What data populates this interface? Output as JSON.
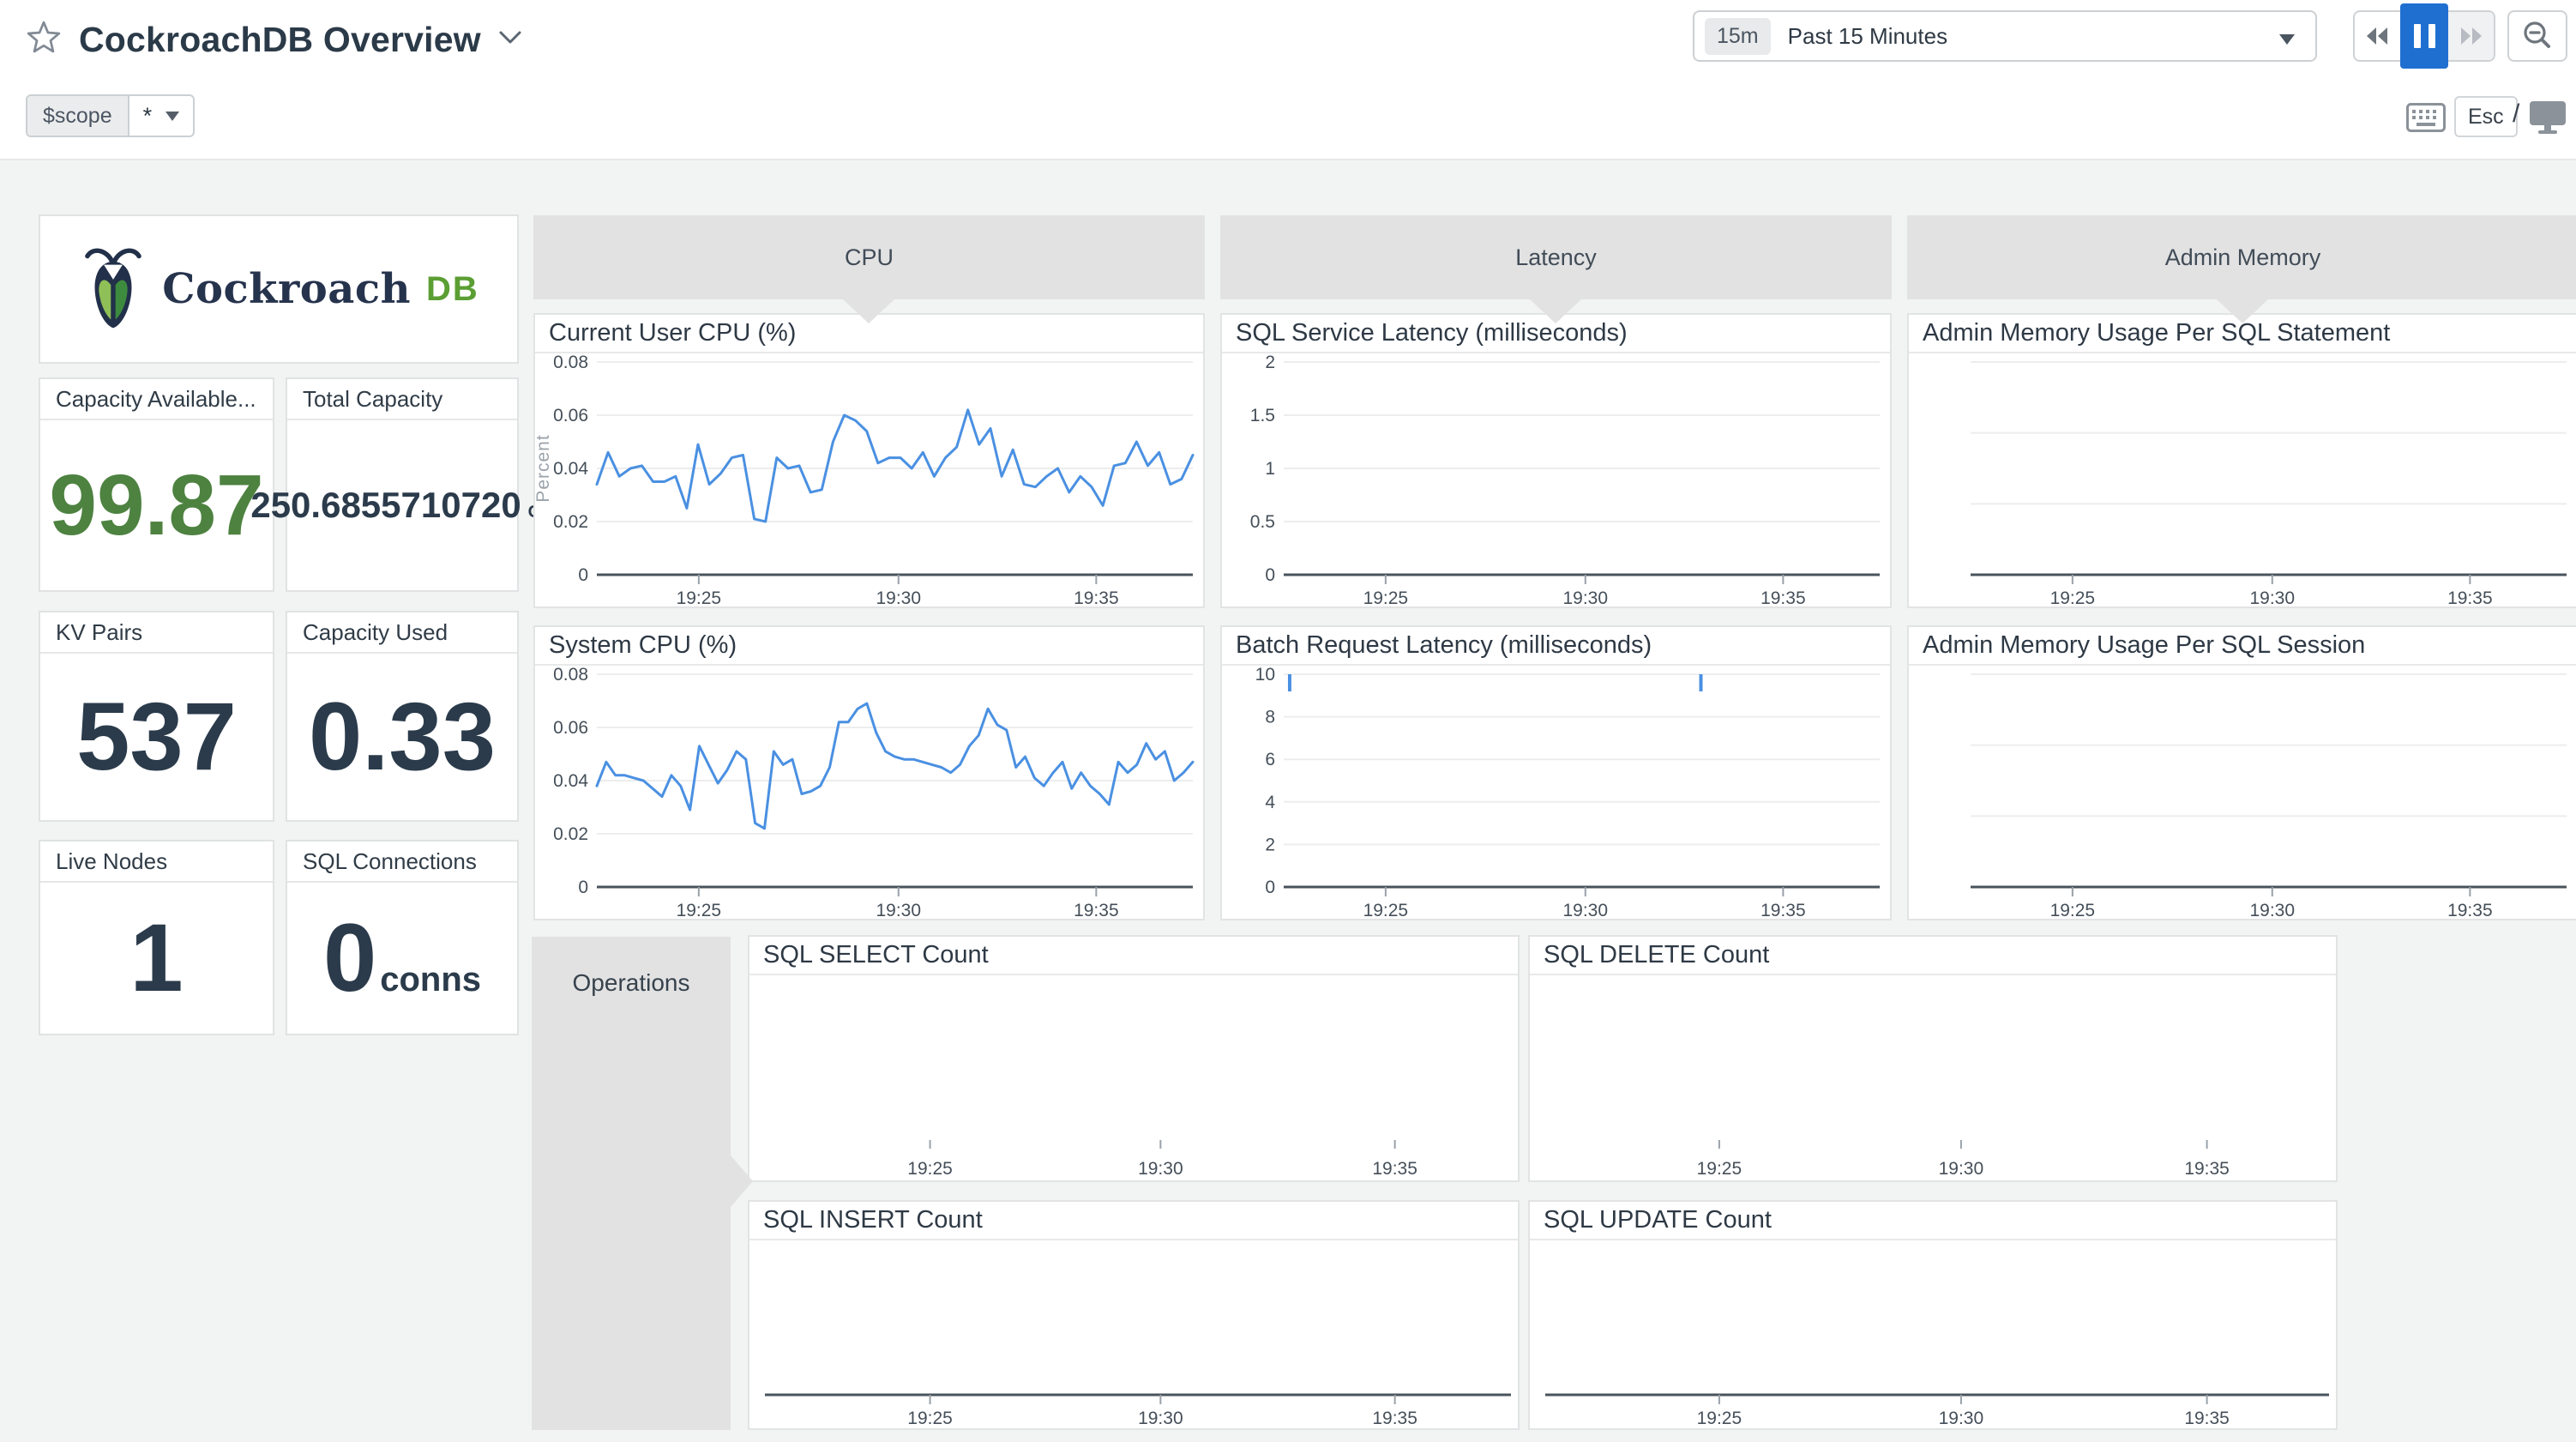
{
  "header": {
    "title": "CockroachDB Overview",
    "time_range": {
      "badge": "15m",
      "label": "Past 15 Minutes"
    },
    "shortcuts": {
      "esc": "Esc",
      "slash": "/"
    }
  },
  "scope_var": {
    "label": "$scope",
    "value": "*"
  },
  "logo": {
    "brand": "Cockroach",
    "suffix": "DB"
  },
  "stat_cards": [
    {
      "title": "Capacity Available...",
      "value": "99.87",
      "unit": ""
    },
    {
      "title": "Total Capacity",
      "value": "250.6855710720",
      "unit": "GB"
    },
    {
      "title": "KV Pairs",
      "value": "537",
      "unit": ""
    },
    {
      "title": "Capacity Used",
      "value": "0.33",
      "unit": ""
    },
    {
      "title": "Live Nodes",
      "value": "1",
      "unit": ""
    },
    {
      "title": "SQL Connections",
      "value": "0",
      "unit": "conns"
    }
  ],
  "groups": [
    {
      "name": "CPU"
    },
    {
      "name": "Latency"
    },
    {
      "name": "Admin Memory"
    },
    {
      "name": "Operations"
    }
  ],
  "chart_data": [
    {
      "type": "line",
      "title": "Current User CPU (%)",
      "ylabel": "Percent",
      "y_ticks": [
        "0.08",
        "0.06",
        "0.04",
        "0.02",
        "0"
      ],
      "ylim": [
        0,
        0.08
      ],
      "x_ticks": [
        "19:25",
        "19:30",
        "19:35"
      ],
      "baseline": true,
      "line_color": "#4a90e2",
      "values": [
        0.034,
        0.046,
        0.037,
        0.04,
        0.041,
        0.035,
        0.035,
        0.037,
        0.025,
        0.049,
        0.034,
        0.038,
        0.044,
        0.045,
        0.021,
        0.02,
        0.044,
        0.04,
        0.041,
        0.031,
        0.032,
        0.05,
        0.06,
        0.058,
        0.054,
        0.042,
        0.044,
        0.044,
        0.04,
        0.046,
        0.037,
        0.044,
        0.048,
        0.062,
        0.049,
        0.055,
        0.037,
        0.047,
        0.034,
        0.033,
        0.037,
        0.04,
        0.031,
        0.037,
        0.033,
        0.026,
        0.041,
        0.042,
        0.05,
        0.041,
        0.046,
        0.034,
        0.036,
        0.045
      ]
    },
    {
      "type": "line",
      "title": "System CPU (%)",
      "ylabel": "",
      "y_ticks": [
        "0.08",
        "0.06",
        "0.04",
        "0.02",
        "0"
      ],
      "ylim": [
        0,
        0.08
      ],
      "x_ticks": [
        "19:25",
        "19:30",
        "19:35"
      ],
      "baseline": true,
      "line_color": "#4a90e2",
      "values": [
        0.038,
        0.047,
        0.042,
        0.042,
        0.041,
        0.04,
        0.037,
        0.034,
        0.042,
        0.038,
        0.029,
        0.053,
        0.046,
        0.039,
        0.044,
        0.051,
        0.048,
        0.024,
        0.022,
        0.051,
        0.046,
        0.048,
        0.035,
        0.036,
        0.038,
        0.045,
        0.062,
        0.062,
        0.067,
        0.069,
        0.058,
        0.051,
        0.049,
        0.048,
        0.048,
        0.047,
        0.046,
        0.045,
        0.043,
        0.046,
        0.053,
        0.057,
        0.067,
        0.061,
        0.059,
        0.045,
        0.049,
        0.041,
        0.038,
        0.043,
        0.047,
        0.037,
        0.043,
        0.038,
        0.035,
        0.031,
        0.047,
        0.043,
        0.046,
        0.054,
        0.048,
        0.051,
        0.04,
        0.043,
        0.047
      ]
    },
    {
      "type": "line",
      "title": "SQL Service Latency (milliseconds)",
      "ylabel": "",
      "y_ticks": [
        "2",
        "1.5",
        "1",
        "0.5",
        "0"
      ],
      "ylim": [
        0,
        2
      ],
      "x_ticks": [
        "19:25",
        "19:30",
        "19:35"
      ],
      "baseline": true,
      "values": []
    },
    {
      "type": "line",
      "title": "Batch Request Latency (milliseconds)",
      "ylabel": "",
      "y_ticks": [
        "10",
        "8",
        "6",
        "4",
        "2",
        "0"
      ],
      "ylim": [
        0,
        10
      ],
      "x_ticks": [
        "19:25",
        "19:30",
        "19:35"
      ],
      "baseline": true,
      "values": [],
      "spikes": [
        {
          "x": 0.01,
          "value": 10
        },
        {
          "x": 0.7,
          "value": 10
        }
      ],
      "line_color": "#4a90e2"
    },
    {
      "type": "line",
      "title": "Admin Memory Usage Per SQL Statement",
      "ylabel": "",
      "y_ticks": [
        "",
        "",
        "",
        ""
      ],
      "x_ticks": [
        "19:25",
        "19:30",
        "19:35"
      ],
      "baseline": true,
      "values": []
    },
    {
      "type": "line",
      "title": "Admin Memory Usage Per SQL Session",
      "ylabel": "",
      "y_ticks": [
        "",
        "",
        "",
        ""
      ],
      "x_ticks": [
        "19:25",
        "19:30",
        "19:35"
      ],
      "baseline": true,
      "values": []
    },
    {
      "type": "line",
      "title": "SQL SELECT Count",
      "ylabel": "",
      "y_ticks": [],
      "x_ticks": [
        "19:25",
        "19:30",
        "19:35"
      ],
      "baseline": false,
      "values": []
    },
    {
      "type": "line",
      "title": "SQL DELETE Count",
      "ylabel": "",
      "y_ticks": [],
      "x_ticks": [
        "19:25",
        "19:30",
        "19:35"
      ],
      "baseline": false,
      "values": []
    },
    {
      "type": "line",
      "title": "SQL INSERT Count",
      "ylabel": "",
      "y_ticks": [],
      "x_ticks": [
        "19:25",
        "19:30",
        "19:35"
      ],
      "baseline": true,
      "values": []
    },
    {
      "type": "line",
      "title": "SQL UPDATE Count",
      "ylabel": "",
      "y_ticks": [],
      "x_ticks": [
        "19:25",
        "19:30",
        "19:35"
      ],
      "baseline": true,
      "values": []
    }
  ],
  "colors": {
    "chart_line_blue": "#4a90e2",
    "pause_active_blue": "#1f6fd1",
    "metric_green": "#4d8240",
    "metric_navy": "#2b3b4b",
    "brand_navy": "#26334d",
    "brand_green": "#5b9e34",
    "group_banner_grey": "#e2e2e3",
    "canvas_grey": "#f2f3f3"
  }
}
